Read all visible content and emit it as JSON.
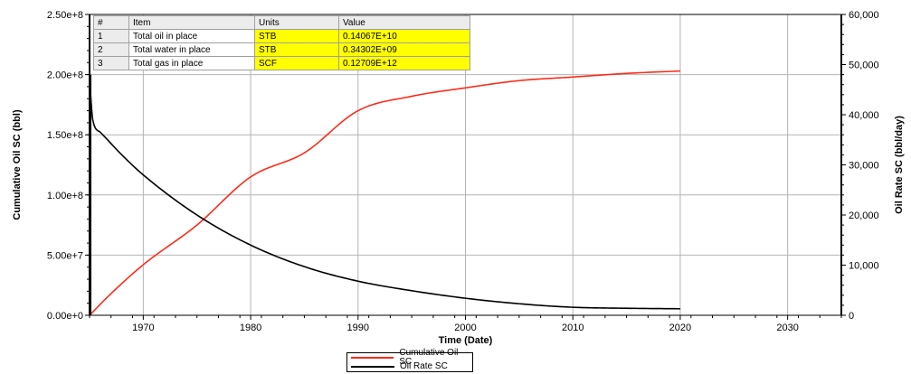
{
  "chart_data": {
    "type": "line",
    "xlabel": "Time (Date)",
    "ylabel_left": "Cumulative Oil SC (bbl)",
    "ylabel_right": "Oil Rate SC (bbl/day)",
    "xlim": [
      1965,
      2035
    ],
    "ylim_left": [
      0,
      250000000
    ],
    "ylim_right": [
      0,
      60000
    ],
    "x_ticks": [
      1970,
      1980,
      1990,
      2000,
      2010,
      2020,
      2030
    ],
    "y_left_ticks": [
      "0.00e+0",
      "5.00e+7",
      "1.00e+8",
      "1.50e+8",
      "2.00e+8",
      "2.50e+8"
    ],
    "y_right_ticks": [
      "0",
      "10,000",
      "20,000",
      "30,000",
      "40,000",
      "50,000",
      "60,000"
    ],
    "grid": true,
    "legend_position": "bottom",
    "series": [
      {
        "name": "Cumulative Oil SC",
        "axis": "left",
        "color": "#ff2a1a",
        "x": [
          1965,
          1967,
          1970,
          1975,
          1980,
          1985,
          1990,
          1995,
          2000,
          2005,
          2010,
          2015,
          2020
        ],
        "values": [
          0,
          18000000,
          42000000,
          75000000,
          115000000,
          135000000,
          170000000,
          182000000,
          189000000,
          195000000,
          198000000,
          201000000,
          203000000
        ]
      },
      {
        "name": "Oil Rate SC",
        "axis": "right",
        "color": "#000000",
        "x": [
          1965,
          1965.1,
          1965.3,
          1966,
          1968,
          1970,
          1975,
          1980,
          1985,
          1990,
          1995,
          2000,
          2005,
          2010,
          2015,
          2020
        ],
        "values": [
          48000,
          44000,
          39000,
          36500,
          32000,
          28000,
          20000,
          14000,
          9700,
          6800,
          4900,
          3400,
          2300,
          1600,
          1400,
          1300
        ]
      }
    ]
  },
  "table": {
    "headers": [
      "#",
      "Item",
      "Units",
      "Value"
    ],
    "rows": [
      {
        "num": "1",
        "item": "Total oil in place",
        "units": "STB",
        "value": "0.14067E+10"
      },
      {
        "num": "2",
        "item": "Total water in place",
        "units": "STB",
        "value": "0.34302E+09"
      },
      {
        "num": "3",
        "item": "Total gas in place",
        "units": "SCF",
        "value": "0.12709E+12"
      }
    ]
  },
  "legend": {
    "items": [
      {
        "label": "Cumulative Oil SC",
        "color": "#ff2a1a"
      },
      {
        "label": "Oil Rate SC",
        "color": "#000000"
      }
    ]
  }
}
